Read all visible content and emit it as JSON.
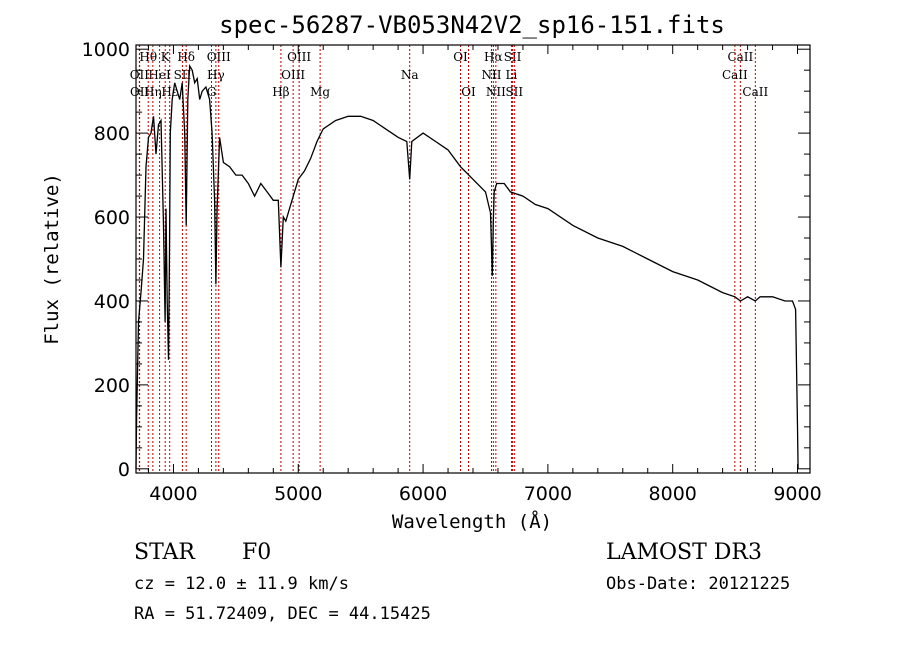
{
  "chart_data": {
    "type": "line",
    "title": "spec-56287-VB053N42V2_sp16-151.fits",
    "xlabel": "Wavelength (Å)",
    "ylabel": "Flux (relative)",
    "xlim": [
      3700,
      9100
    ],
    "ylim": [
      -10,
      1010
    ],
    "x_ticks": [
      4000,
      5000,
      6000,
      7000,
      8000,
      9000
    ],
    "y_ticks": [
      0,
      200,
      400,
      600,
      800,
      1000
    ],
    "series": [
      {
        "name": "Flux",
        "x": [
          3700,
          3705,
          3720,
          3740,
          3760,
          3780,
          3800,
          3820,
          3840,
          3860,
          3880,
          3900,
          3920,
          3933,
          3940,
          3950,
          3960,
          3968,
          3975,
          3990,
          4010,
          4030,
          4050,
          4070,
          4090,
          4102,
          4115,
          4130,
          4150,
          4170,
          4190,
          4210,
          4230,
          4260,
          4290,
          4310,
          4330,
          4340,
          4350,
          4370,
          4400,
          4450,
          4500,
          4550,
          4600,
          4650,
          4700,
          4750,
          4800,
          4840,
          4861,
          4880,
          4900,
          4950,
          5000,
          5050,
          5100,
          5150,
          5200,
          5300,
          5400,
          5500,
          5600,
          5700,
          5800,
          5870,
          5893,
          5910,
          6000,
          6100,
          6200,
          6300,
          6400,
          6500,
          6540,
          6555,
          6563,
          6570,
          6590,
          6650,
          6700,
          6800,
          6900,
          7000,
          7200,
          7400,
          7600,
          7800,
          8000,
          8200,
          8400,
          8498,
          8542,
          8600,
          8662,
          8700,
          8800,
          8900,
          8960,
          8985,
          9000,
          9005
        ],
        "y": [
          0,
          120,
          350,
          420,
          500,
          720,
          790,
          800,
          840,
          750,
          820,
          830,
          580,
          350,
          620,
          400,
          260,
          520,
          800,
          880,
          920,
          900,
          880,
          920,
          800,
          580,
          880,
          960,
          950,
          920,
          930,
          880,
          900,
          910,
          880,
          800,
          640,
          440,
          620,
          790,
          730,
          720,
          700,
          700,
          680,
          650,
          680,
          660,
          640,
          640,
          480,
          600,
          590,
          640,
          690,
          710,
          740,
          780,
          810,
          830,
          840,
          840,
          830,
          810,
          790,
          780,
          690,
          780,
          800,
          780,
          760,
          720,
          690,
          660,
          610,
          460,
          590,
          660,
          680,
          680,
          660,
          650,
          630,
          620,
          580,
          550,
          530,
          500,
          470,
          450,
          420,
          410,
          400,
          410,
          400,
          410,
          410,
          400,
          400,
          380,
          100,
          0
        ]
      }
    ],
    "spectral_lines": [
      {
        "label": "Hθ",
        "x": 3798,
        "row": 0
      },
      {
        "label": "OII",
        "x": 3727,
        "row": 1
      },
      {
        "label": "OII",
        "x": 3729,
        "row": 2
      },
      {
        "label": "Hη",
        "x": 3835,
        "row": 2
      },
      {
        "label": "HeI",
        "x": 3889,
        "row": 1
      },
      {
        "label": "K",
        "x": 3934,
        "row": 0
      },
      {
        "label": "Hε",
        "x": 3970,
        "row": 2
      },
      {
        "label": "Hδ",
        "x": 4102,
        "row": 0
      },
      {
        "label": "SII",
        "x": 4072,
        "row": 1
      },
      {
        "label": "G",
        "x": 4305,
        "row": 2
      },
      {
        "label": "OIII",
        "x": 4363,
        "row": 0
      },
      {
        "label": "Hγ",
        "x": 4340,
        "row": 1
      },
      {
        "label": "Hβ",
        "x": 4861,
        "row": 2
      },
      {
        "label": "OIII",
        "x": 4959,
        "row": 1
      },
      {
        "label": "OIII",
        "x": 5007,
        "row": 0
      },
      {
        "label": "Mg",
        "x": 5175,
        "row": 2
      },
      {
        "label": "Na",
        "x": 5893,
        "row": 1
      },
      {
        "label": "OI",
        "x": 6300,
        "row": 0
      },
      {
        "label": "OI",
        "x": 6364,
        "row": 2
      },
      {
        "label": "Hα",
        "x": 6563,
        "row": 0
      },
      {
        "label": "NII",
        "x": 6548,
        "row": 1
      },
      {
        "label": "NII",
        "x": 6583,
        "row": 2
      },
      {
        "label": "SII",
        "x": 6717,
        "row": 0
      },
      {
        "label": "Li",
        "x": 6708,
        "row": 1
      },
      {
        "label": "SII",
        "x": 6731,
        "row": 2
      },
      {
        "label": "CaII",
        "x": 8542,
        "row": 0
      },
      {
        "label": "CaII",
        "x": 8498,
        "row": 1
      },
      {
        "label": "CaII",
        "x": 8662,
        "row": 2
      }
    ]
  },
  "info": {
    "object_class": "STAR",
    "subclass": "F0",
    "survey": "LAMOST DR3",
    "redshift": "cz = 12.0 ± 11.9 km/s",
    "obs_date": "Obs-Date: 20121225",
    "coords": "RA =  51.72409, DEC =  44.15425"
  }
}
